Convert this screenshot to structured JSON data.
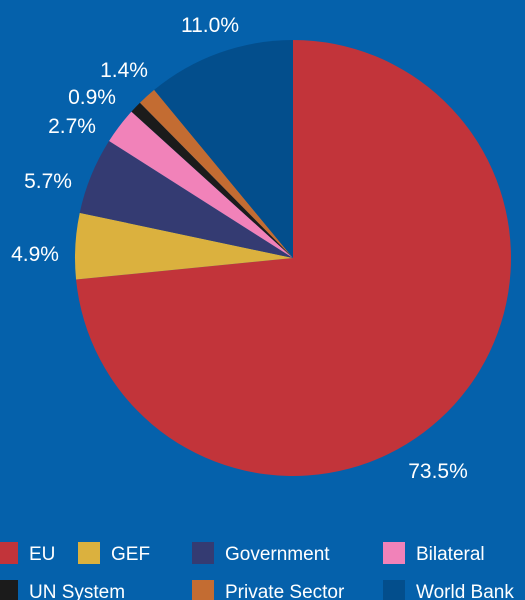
{
  "chart_data": {
    "type": "pie",
    "title": "",
    "background": "#0561ab",
    "start": "12 o'clock",
    "direction": "clockwise",
    "legend": "bottom",
    "slices": [
      {
        "name": "EU",
        "value": 73.5,
        "label": "73.5%",
        "color": "#c2343a"
      },
      {
        "name": "GEF",
        "value": 4.9,
        "label": "4.9%",
        "color": "#dbb13e"
      },
      {
        "name": "Government",
        "value": 5.7,
        "label": "5.7%",
        "color": "#343b72"
      },
      {
        "name": "Bilateral",
        "value": 2.7,
        "label": "2.7%",
        "color": "#f182b9"
      },
      {
        "name": "UN System",
        "value": 0.9,
        "label": "0.9%",
        "color": "#1b1b1b"
      },
      {
        "name": "Private Sector",
        "value": 1.4,
        "label": "1.4%",
        "color": "#c36c32"
      },
      {
        "name": "World Bank",
        "value": 11.0,
        "label": "11.0%",
        "color": "#034e8c"
      }
    ]
  }
}
